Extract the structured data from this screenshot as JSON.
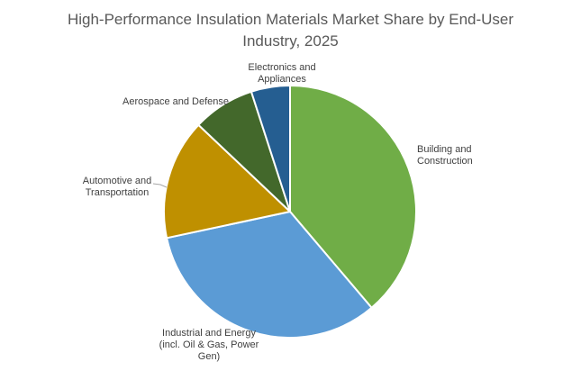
{
  "chart_data": {
    "type": "pie",
    "title_lines": [
      "High-Performance Insulation Materials Market Share by End-User",
      "Industry, 2025"
    ],
    "unit": "%",
    "start_angle_deg": 0,
    "direction": "clockwise",
    "legend": "none",
    "slices": [
      {
        "label_lines": [
          "Building and",
          "Construction"
        ],
        "value": 39,
        "color": "#70AD47"
      },
      {
        "label_lines": [
          "Industrial and Energy",
          "(incl. Oil & Gas, Power",
          "Gen)"
        ],
        "value": 33,
        "color": "#5B9BD5"
      },
      {
        "label_lines": [
          "Automotive and",
          "Transportation"
        ],
        "value": 15.5,
        "color": "#BF9000"
      },
      {
        "label_lines": [
          "Aerospace and Defense"
        ],
        "value": 8,
        "color": "#43682B"
      },
      {
        "label_lines": [
          "Electronics and",
          "Appliances"
        ],
        "value": 5,
        "color": "#255E91"
      }
    ]
  }
}
